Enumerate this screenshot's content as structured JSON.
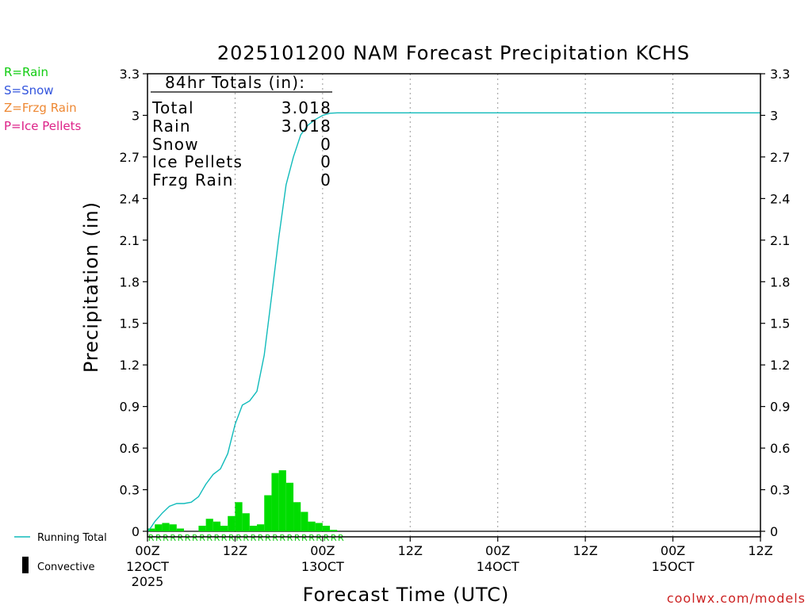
{
  "chart_data": {
    "type": "bar",
    "title": "2025101200 NAM Forecast Precipitation KCHS",
    "xlabel": "Forecast Time (UTC)",
    "ylabel": "Precipitation (in)",
    "ylim": [
      0,
      3.3
    ],
    "xlim_hours": [
      0,
      84
    ],
    "yticks": [
      "0",
      "0.3",
      "0.6",
      "0.9",
      "1.2",
      "1.5",
      "1.8",
      "2.1",
      "2.4",
      "2.7",
      "3",
      "3.3"
    ],
    "xticks": [
      {
        "hour": 0,
        "label": "00Z",
        "date": "12OCT",
        "year": "2025"
      },
      {
        "hour": 12,
        "label": "12Z",
        "date": "",
        "year": ""
      },
      {
        "hour": 24,
        "label": "00Z",
        "date": "13OCT",
        "year": ""
      },
      {
        "hour": 36,
        "label": "12Z",
        "date": "",
        "year": ""
      },
      {
        "hour": 48,
        "label": "00Z",
        "date": "14OCT",
        "year": ""
      },
      {
        "hour": 60,
        "label": "12Z",
        "date": "",
        "year": ""
      },
      {
        "hour": 72,
        "label": "00Z",
        "date": "15OCT",
        "year": ""
      },
      {
        "hour": 84,
        "label": "12Z",
        "date": "",
        "year": ""
      }
    ],
    "series": [
      {
        "name": "Hourly Rain",
        "color": "#00dd00",
        "hours": [
          0,
          1,
          2,
          3,
          4,
          5,
          6,
          7,
          8,
          9,
          10,
          11,
          12,
          13,
          14,
          15,
          16,
          17,
          18,
          19,
          20,
          21,
          22,
          23,
          24,
          25,
          26
        ],
        "values": [
          0.02,
          0.05,
          0.06,
          0.05,
          0.02,
          0.0,
          0.0,
          0.04,
          0.09,
          0.07,
          0.04,
          0.11,
          0.21,
          0.13,
          0.04,
          0.05,
          0.26,
          0.42,
          0.44,
          0.35,
          0.21,
          0.14,
          0.07,
          0.06,
          0.04,
          0.01,
          0.0
        ]
      },
      {
        "name": "Running Total",
        "color": "#11bbbb",
        "hours": [
          0,
          0.5,
          1,
          2,
          3,
          4,
          5,
          6,
          7,
          8,
          9,
          10,
          11,
          12,
          13,
          14,
          15,
          16,
          17,
          18,
          19,
          20,
          21,
          22,
          23,
          24,
          25,
          26,
          27,
          84
        ],
        "values": [
          0,
          0.03,
          0.07,
          0.13,
          0.18,
          0.2,
          0.2,
          0.21,
          0.25,
          0.34,
          0.41,
          0.45,
          0.56,
          0.77,
          0.91,
          0.94,
          1.01,
          1.27,
          1.69,
          2.12,
          2.5,
          2.7,
          2.86,
          2.93,
          2.97,
          3.0,
          3.015,
          3.018,
          3.018,
          3.018
        ]
      }
    ],
    "precip_type_marker": "R",
    "precip_type_hours": [
      0,
      1,
      2,
      3,
      4,
      5,
      6,
      7,
      8,
      9,
      10,
      11,
      12,
      13,
      14,
      15,
      16,
      17,
      18,
      19,
      20,
      21,
      22,
      23,
      24,
      25,
      26
    ],
    "totals_box": {
      "heading": "84hr Totals (in):",
      "rows": [
        {
          "label": "Total",
          "value": "3.018"
        },
        {
          "label": "Rain",
          "value": "3.018"
        },
        {
          "label": "Snow",
          "value": "0"
        },
        {
          "label": "Ice Pellets",
          "value": "0"
        },
        {
          "label": "Frzg Rain",
          "value": "0"
        }
      ]
    }
  },
  "legend": {
    "rain": {
      "text": "R=Rain",
      "color": "#11cc11"
    },
    "snow": {
      "text": "S=Snow",
      "color": "#3355dd"
    },
    "frzg": {
      "text": "Z=Frzg Rain",
      "color": "#ee8833"
    },
    "ice": {
      "text": "P=Ice Pellets",
      "color": "#dd2288"
    },
    "running_total": "Running Total",
    "convective": "Convective"
  },
  "branding": "coolwx.com/models"
}
